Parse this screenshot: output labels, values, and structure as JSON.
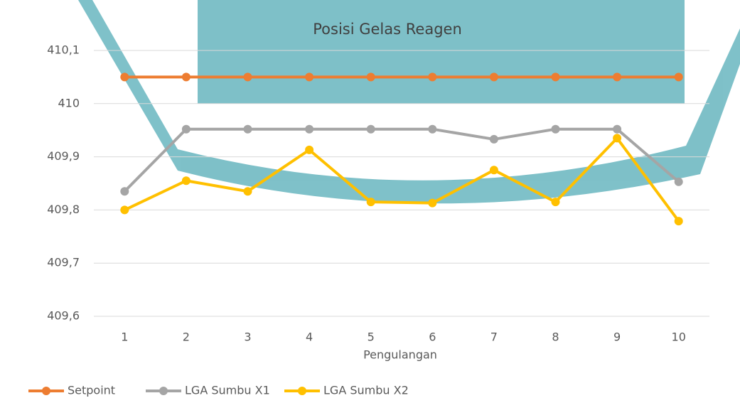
{
  "chart_data": {
    "type": "line",
    "title": "Posisi Gelas Reagen",
    "x_label": "Pengulangan",
    "categories": [
      "1",
      "2",
      "3",
      "4",
      "5",
      "6",
      "7",
      "8",
      "9",
      "10"
    ],
    "series": [
      {
        "name": "Setpoint",
        "color": "#ed7d31",
        "values": [
          410.05,
          410.05,
          410.05,
          410.05,
          410.05,
          410.05,
          410.05,
          410.05,
          410.05,
          410.05
        ]
      },
      {
        "name": "LGA Sumbu X1",
        "color": "#a5a5a5",
        "values": [
          409.835,
          409.952,
          409.952,
          409.952,
          409.952,
          409.952,
          409.933,
          409.952,
          409.952,
          409.853
        ]
      },
      {
        "name": "LGA Sumbu X2",
        "color": "#ffc000",
        "values": [
          409.8,
          409.855,
          409.835,
          409.913,
          409.815,
          409.813,
          409.875,
          409.815,
          409.935,
          409.779
        ]
      }
    ],
    "ylim": [
      409.6,
      410.1
    ],
    "yticks": [
      {
        "value": 409.6,
        "label": "409,6"
      },
      {
        "value": 409.7,
        "label": "409,7"
      },
      {
        "value": 409.8,
        "label": "409,8"
      },
      {
        "value": 409.9,
        "label": "409,9"
      },
      {
        "value": 410,
        "label": "410"
      },
      {
        "value": 410.1,
        "label": "410,1"
      }
    ],
    "grid": true,
    "legend": "bottom"
  }
}
